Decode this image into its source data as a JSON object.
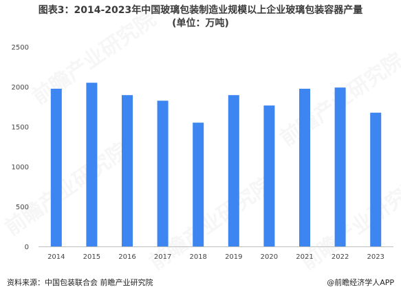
{
  "title_line1": "图表3：2014-2023年中国玻璃包装制造业规模以上企业玻璃包装容器产量",
  "title_line2": "(单位：万吨)",
  "source": "资料来源：中国包装联合会 前瞻产业研究院",
  "credit": "@前瞻经济学人APP",
  "watermark": "前瞻产业研究院",
  "colors": {
    "bar": "#3D85F0",
    "axis": "#bfbfbf"
  },
  "chart_data": {
    "type": "bar",
    "title": "图表3：2014-2023年中国玻璃包装制造业规模以上企业玻璃包装容器产量",
    "subtitle": "(单位：万吨)",
    "categories": [
      "2014",
      "2015",
      "2016",
      "2017",
      "2018",
      "2019",
      "2020",
      "2021",
      "2022",
      "2023"
    ],
    "values": [
      1975,
      2050,
      1895,
      1825,
      1550,
      1895,
      1765,
      1975,
      1990,
      1675
    ],
    "ylim": [
      0,
      2500
    ],
    "yticks": [
      0,
      500,
      1000,
      1500,
      2000,
      2500
    ],
    "ytick_labels": [
      "0",
      "500",
      "1000",
      "1500",
      "2000",
      "2500"
    ],
    "grid": false,
    "legend": "none"
  }
}
